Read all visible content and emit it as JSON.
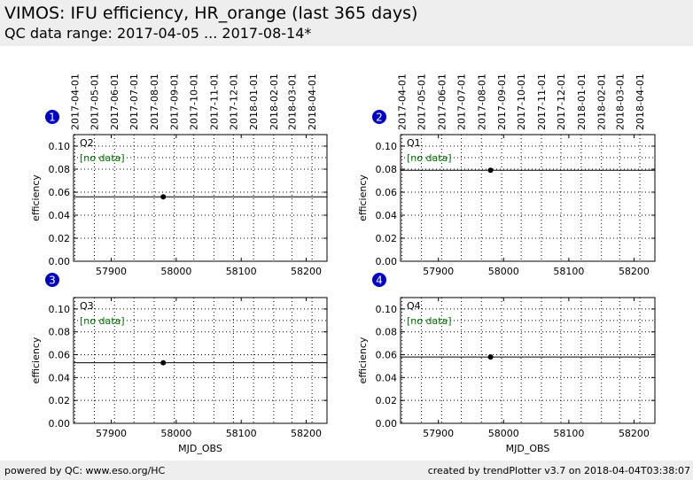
{
  "header": {
    "title": "VIMOS: IFU efficiency, HR_orange (last 365 days)",
    "subtitle": "QC data range: 2017-04-05 ... 2017-08-14*"
  },
  "footer": {
    "left": "powered by QC: www.eso.org/HC",
    "right": "created by trendPlotter v3.7 on 2018-04-04T03:38:07"
  },
  "colors": {
    "header_bg": "#eeeeee",
    "badge": "#0000cc",
    "no_data": "#007700",
    "line": "#000000"
  },
  "chart_data": [
    {
      "type": "scatter",
      "badge": "1",
      "quadrant": "Q2",
      "no_data_label": "[no data]",
      "x": [
        57980
      ],
      "y": [
        0.056
      ],
      "reference_line": 0.056,
      "xlabel": "",
      "ylabel": "efficiency",
      "xlim": [
        57842,
        58232
      ],
      "ylim": [
        0,
        0.11
      ],
      "xticks": [
        57900,
        58000,
        58100,
        58200
      ],
      "yticks": [
        "0.00",
        "0.02",
        "0.04",
        "0.06",
        "0.08",
        "0.10"
      ],
      "date_ticks": [
        "2017-04-01",
        "2017-05-01",
        "2017-06-01",
        "2017-07-01",
        "2017-08-01",
        "2017-09-01",
        "2017-10-01",
        "2017-11-01",
        "2017-12-01",
        "2018-01-01",
        "2018-02-01",
        "2018-03-01",
        "2018-04-01"
      ],
      "date_ticks_mjd": [
        57844,
        57874,
        57905,
        57935,
        57966,
        57997,
        58027,
        58058,
        58088,
        58119,
        58150,
        58178,
        58209
      ],
      "grid": true,
      "dotted_hline": 0.09
    },
    {
      "type": "scatter",
      "badge": "2",
      "quadrant": "Q1",
      "no_data_label": "[no data]",
      "x": [
        57980
      ],
      "y": [
        0.079
      ],
      "reference_line": 0.079,
      "xlabel": "",
      "ylabel": "efficiency",
      "xlim": [
        57842,
        58232
      ],
      "ylim": [
        0,
        0.11
      ],
      "xticks": [
        57900,
        58000,
        58100,
        58200
      ],
      "yticks": [
        "0.00",
        "0.02",
        "0.04",
        "0.06",
        "0.08",
        "0.10"
      ],
      "date_ticks": [
        "2017-04-01",
        "2017-05-01",
        "2017-06-01",
        "2017-07-01",
        "2017-08-01",
        "2017-09-01",
        "2017-10-01",
        "2017-11-01",
        "2017-12-01",
        "2018-01-01",
        "2018-02-01",
        "2018-03-01",
        "2018-04-01"
      ],
      "date_ticks_mjd": [
        57844,
        57874,
        57905,
        57935,
        57966,
        57997,
        58027,
        58058,
        58088,
        58119,
        58150,
        58178,
        58209
      ],
      "grid": true,
      "dotted_hline": 0.09
    },
    {
      "type": "scatter",
      "badge": "3",
      "quadrant": "Q3",
      "no_data_label": "[no data]",
      "x": [
        57980
      ],
      "y": [
        0.053
      ],
      "reference_line": 0.053,
      "xlabel": "MJD_OBS",
      "ylabel": "efficiency",
      "xlim": [
        57842,
        58232
      ],
      "ylim": [
        0,
        0.11
      ],
      "xticks": [
        57900,
        58000,
        58100,
        58200
      ],
      "yticks": [
        "0.00",
        "0.02",
        "0.04",
        "0.06",
        "0.08",
        "0.10"
      ],
      "grid": true,
      "dotted_hline": 0.09
    },
    {
      "type": "scatter",
      "badge": "4",
      "quadrant": "Q4",
      "no_data_label": "[no data]",
      "x": [
        57980
      ],
      "y": [
        0.058
      ],
      "reference_line": 0.058,
      "xlabel": "MJD_OBS",
      "ylabel": "efficiency",
      "xlim": [
        57842,
        58232
      ],
      "ylim": [
        0,
        0.11
      ],
      "xticks": [
        57900,
        58000,
        58100,
        58200
      ],
      "yticks": [
        "0.00",
        "0.02",
        "0.04",
        "0.06",
        "0.08",
        "0.10"
      ],
      "grid": true,
      "dotted_hline": 0.09
    }
  ]
}
